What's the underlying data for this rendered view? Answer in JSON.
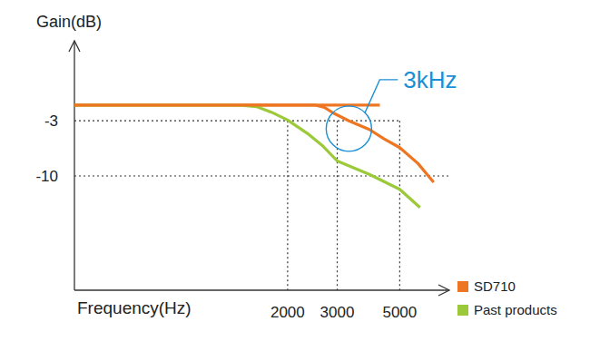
{
  "chart_data": {
    "type": "line",
    "x_label": "Frequency(Hz)",
    "y_label": "Gain(dB)",
    "log": "x",
    "xlim": [
      350,
      7500
    ],
    "ylim": [
      -24.5,
      6
    ],
    "xticks": [
      2000,
      3000,
      5000
    ],
    "yticks": [
      -3,
      -10
    ],
    "grid": true,
    "legend": "lower right",
    "series": [
      {
        "name": "SD710",
        "color": "#ee7623",
        "x": [
          350,
          2500,
          2700,
          2900,
          3300,
          3900,
          4400,
          5000,
          5800,
          6600
        ],
        "values": [
          -1,
          -1,
          -1.3,
          -2.0,
          -3.0,
          -4.1,
          -5.3,
          -6.4,
          -8.4,
          -10.8
        ]
      },
      {
        "name": "Past products",
        "color": "#9bc93a",
        "x": [
          350,
          1350,
          1550,
          1750,
          2000,
          2350,
          2650,
          3000,
          3900,
          5000,
          5900
        ],
        "values": [
          -1,
          -1,
          -1.2,
          -1.9,
          -2.9,
          -4.6,
          -6.1,
          -8.1,
          -9.8,
          -11.7,
          -14.0
        ]
      },
      {
        "color": "#ee7623",
        "x": [
          350,
          4250
        ],
        "values": [
          -1,
          -1
        ]
      }
    ],
    "annotations": [
      {
        "text": "3kHz",
        "x": 3300,
        "y": -4
      }
    ]
  }
}
